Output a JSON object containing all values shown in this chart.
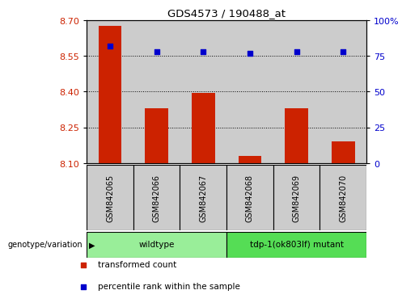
{
  "title": "GDS4573 / 190488_at",
  "categories": [
    "GSM842065",
    "GSM842066",
    "GSM842067",
    "GSM842068",
    "GSM842069",
    "GSM842070"
  ],
  "bar_values": [
    8.675,
    8.33,
    8.395,
    8.13,
    8.33,
    8.19
  ],
  "percentile_values": [
    82,
    78,
    78,
    77,
    78,
    78
  ],
  "y_min": 8.1,
  "y_max": 8.7,
  "y_ticks": [
    8.1,
    8.25,
    8.4,
    8.55,
    8.7
  ],
  "y2_ticks": [
    0,
    25,
    50,
    75,
    100
  ],
  "bar_color": "#cc2200",
  "dot_color": "#0000cc",
  "bar_width": 0.5,
  "genotype_groups": [
    {
      "label": "wildtype",
      "indices": [
        0,
        1,
        2
      ],
      "color": "#99ee99"
    },
    {
      "label": "tdp-1(ok803lf) mutant",
      "indices": [
        3,
        4,
        5
      ],
      "color": "#55dd55"
    }
  ],
  "legend_items": [
    {
      "label": "transformed count",
      "color": "#cc2200"
    },
    {
      "label": "percentile rank within the sample",
      "color": "#0000cc"
    }
  ],
  "genotype_label": "genotype/variation",
  "tick_color_left": "#cc2200",
  "tick_color_right": "#0000cc",
  "sample_box_color": "#cccccc",
  "plot_bg": "#ffffff"
}
